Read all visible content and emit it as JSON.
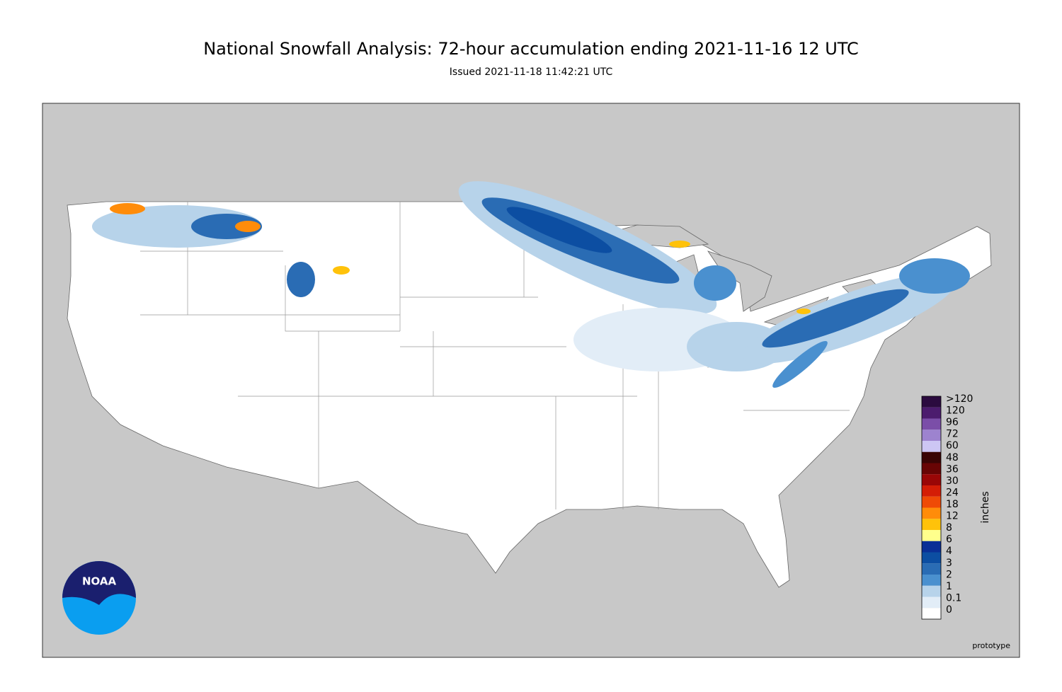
{
  "header": {
    "title": "National Snowfall Analysis: 72-hour accumulation ending 2021-11-16 12 UTC",
    "subtitle": "Issued 2021-11-18 11:42:21 UTC"
  },
  "legend": {
    "unit": "inches",
    "labels": [
      ">120",
      "120",
      "96",
      "72",
      "60",
      "48",
      "36",
      "30",
      "24",
      "18",
      "12",
      "8",
      "6",
      "4",
      "3",
      "2",
      "1",
      "0.1",
      "0"
    ],
    "colors": [
      "#2b0b3f",
      "#4c1c6e",
      "#7b4ea8",
      "#9d83cf",
      "#cdc6f4",
      "#3a0404",
      "#680404",
      "#9a0606",
      "#d41d06",
      "#ef4a06",
      "#ff8c0a",
      "#ffc20a",
      "#ffff8c",
      "#0a2f96",
      "#0c4ea2",
      "#2a6cb4",
      "#4a90cf",
      "#b7d3ea",
      "#e2edf7",
      "#ffffff"
    ]
  },
  "logo": {
    "text": "NOAA"
  },
  "footer": {
    "note": "prototype"
  }
}
